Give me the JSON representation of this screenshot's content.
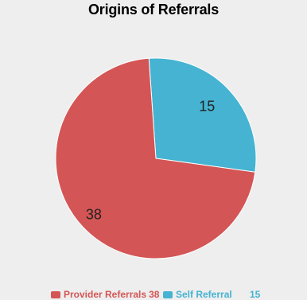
{
  "chart_data": {
    "type": "pie",
    "title": "Origins of Referrals",
    "categories": [
      "Provider Referrals",
      "Self Referral"
    ],
    "values": [
      38,
      15
    ],
    "colors": [
      "#d45555",
      "#45b3d1"
    ],
    "data_labels": [
      "38",
      "15"
    ],
    "legend": {
      "placement": "bottom",
      "entries": [
        {
          "label": "Provider Referrals",
          "value": "38"
        },
        {
          "label": "Self Referral",
          "value": "15"
        }
      ]
    }
  },
  "background_color": "#eeeeee"
}
